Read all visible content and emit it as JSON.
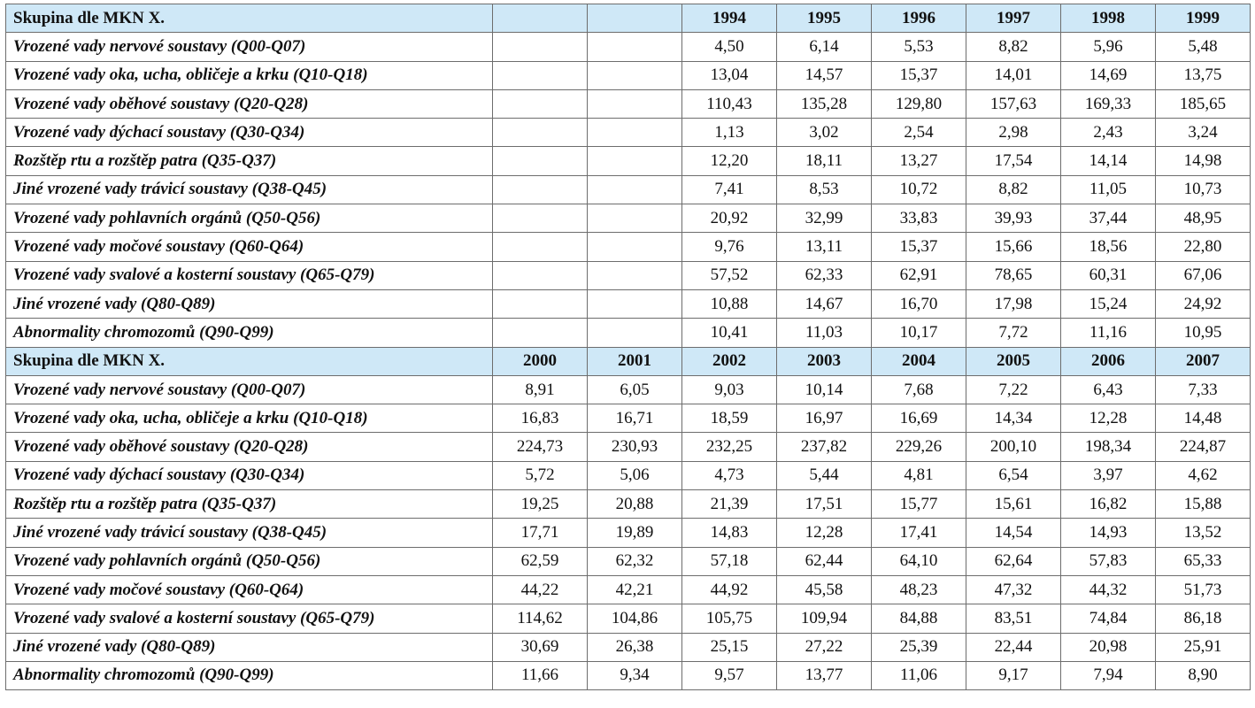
{
  "section_1994_1999": {
    "header_label": "Skupina dle MKN X.",
    "years": [
      "",
      "",
      "1994",
      "1995",
      "1996",
      "1997",
      "1998",
      "1999"
    ],
    "rows": [
      {
        "label": "Vrozené vady nervové soustavy (Q00-Q07)",
        "values": [
          "",
          "",
          "4,50",
          "6,14",
          "5,53",
          "8,82",
          "5,96",
          "5,48"
        ]
      },
      {
        "label": "Vrozené vady oka, ucha, obličeje a krku (Q10-Q18)",
        "values": [
          "",
          "",
          "13,04",
          "14,57",
          "15,37",
          "14,01",
          "14,69",
          "13,75"
        ]
      },
      {
        "label": "Vrozené vady oběhové soustavy (Q20-Q28)",
        "values": [
          "",
          "",
          "110,43",
          "135,28",
          "129,80",
          "157,63",
          "169,33",
          "185,65"
        ]
      },
      {
        "label": "Vrozené vady dýchací soustavy (Q30-Q34)",
        "values": [
          "",
          "",
          "1,13",
          "3,02",
          "2,54",
          "2,98",
          "2,43",
          "3,24"
        ]
      },
      {
        "label": "Rozštěp rtu a rozštěp patra (Q35-Q37)",
        "values": [
          "",
          "",
          "12,20",
          "18,11",
          "13,27",
          "17,54",
          "14,14",
          "14,98"
        ]
      },
      {
        "label": "Jiné vrozené vady trávicí soustavy (Q38-Q45)",
        "values": [
          "",
          "",
          "7,41",
          "8,53",
          "10,72",
          "8,82",
          "11,05",
          "10,73"
        ]
      },
      {
        "label": "Vrozené vady pohlavních orgánů (Q50-Q56)",
        "values": [
          "",
          "",
          "20,92",
          "32,99",
          "33,83",
          "39,93",
          "37,44",
          "48,95"
        ]
      },
      {
        "label": "Vrozené vady močové soustavy (Q60-Q64)",
        "values": [
          "",
          "",
          "9,76",
          "13,11",
          "15,37",
          "15,66",
          "18,56",
          "22,80"
        ]
      },
      {
        "label": "Vrozené vady svalové a kosterní soustavy (Q65-Q79)",
        "values": [
          "",
          "",
          "57,52",
          "62,33",
          "62,91",
          "78,65",
          "60,31",
          "67,06"
        ]
      },
      {
        "label": "Jiné vrozené vady (Q80-Q89)",
        "values": [
          "",
          "",
          "10,88",
          "14,67",
          "16,70",
          "17,98",
          "15,24",
          "24,92"
        ]
      },
      {
        "label": "Abnormality chromozomů (Q90-Q99)",
        "values": [
          "",
          "",
          "10,41",
          "11,03",
          "10,17",
          "7,72",
          "11,16",
          "10,95"
        ]
      }
    ]
  },
  "section_2000_2007": {
    "header_label": "Skupina dle MKN X.",
    "years": [
      "2000",
      "2001",
      "2002",
      "2003",
      "2004",
      "2005",
      "2006",
      "2007"
    ],
    "rows": [
      {
        "label": "Vrozené vady nervové soustavy (Q00-Q07)",
        "values": [
          "8,91",
          "6,05",
          "9,03",
          "10,14",
          "7,68",
          "7,22",
          "6,43",
          "7,33"
        ]
      },
      {
        "label": "Vrozené vady oka, ucha, obličeje a krku (Q10-Q18)",
        "values": [
          "16,83",
          "16,71",
          "18,59",
          "16,97",
          "16,69",
          "14,34",
          "12,28",
          "14,48"
        ]
      },
      {
        "label": "Vrozené vady oběhové soustavy (Q20-Q28)",
        "values": [
          "224,73",
          "230,93",
          "232,25",
          "237,82",
          "229,26",
          "200,10",
          "198,34",
          "224,87"
        ]
      },
      {
        "label": "Vrozené vady dýchací soustavy (Q30-Q34)",
        "values": [
          "5,72",
          "5,06",
          "4,73",
          "5,44",
          "4,81",
          "6,54",
          "3,97",
          "4,62"
        ]
      },
      {
        "label": "Rozštěp rtu a rozštěp patra (Q35-Q37)",
        "values": [
          "19,25",
          "20,88",
          "21,39",
          "17,51",
          "15,77",
          "15,61",
          "16,82",
          "15,88"
        ]
      },
      {
        "label": "Jiné vrozené vady trávicí soustavy (Q38-Q45)",
        "values": [
          "17,71",
          "19,89",
          "14,83",
          "12,28",
          "17,41",
          "14,54",
          "14,93",
          "13,52"
        ]
      },
      {
        "label": "Vrozené vady pohlavních orgánů (Q50-Q56)",
        "values": [
          "62,59",
          "62,32",
          "57,18",
          "62,44",
          "64,10",
          "62,64",
          "57,83",
          "65,33"
        ]
      },
      {
        "label": "Vrozené vady močové soustavy (Q60-Q64)",
        "values": [
          "44,22",
          "42,21",
          "44,92",
          "45,58",
          "48,23",
          "47,32",
          "44,32",
          "51,73"
        ]
      },
      {
        "label": "Vrozené vady svalové a kosterní soustavy (Q65-Q79)",
        "values": [
          "114,62",
          "104,86",
          "105,75",
          "109,94",
          "84,88",
          "83,51",
          "74,84",
          "86,18"
        ]
      },
      {
        "label": "Jiné vrozené vady (Q80-Q89)",
        "values": [
          "30,69",
          "26,38",
          "25,15",
          "27,22",
          "25,39",
          "22,44",
          "20,98",
          "25,91"
        ]
      },
      {
        "label": "Abnormality chromozomů (Q90-Q99)",
        "values": [
          "11,66",
          "9,34",
          "9,57",
          "13,77",
          "11,06",
          "9,17",
          "7,94",
          "8,90"
        ]
      }
    ]
  }
}
